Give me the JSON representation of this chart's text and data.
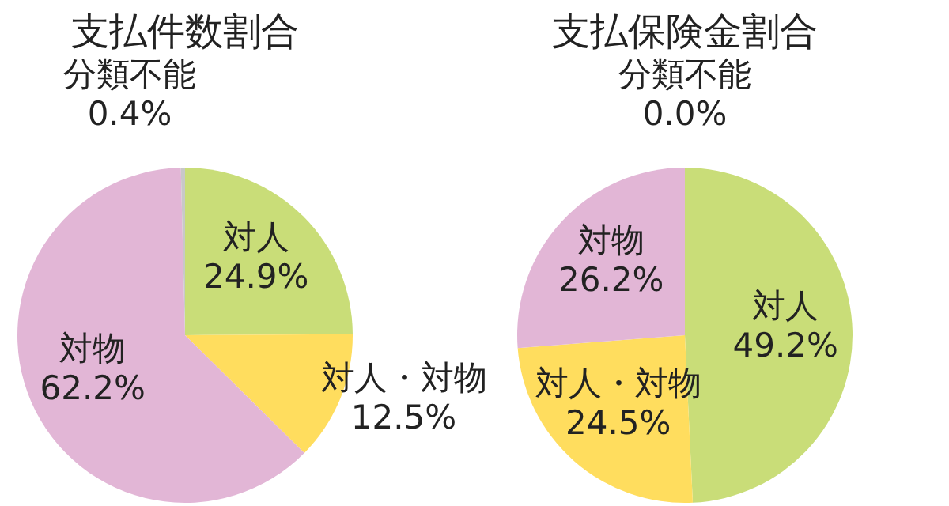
{
  "chart_data": [
    {
      "type": "pie",
      "title": "支払件数割合",
      "categories": [
        "対人",
        "対人・対物",
        "対物",
        "分類不能"
      ],
      "values": [
        24.9,
        12.5,
        62.2,
        0.4
      ],
      "value_labels": [
        "24.9%",
        "12.5%",
        "62.2%",
        "0.4%"
      ],
      "colors": [
        "#c9dd78",
        "#ffdd5e",
        "#e2b6d6",
        "#c8c8c8"
      ]
    },
    {
      "type": "pie",
      "title": "支払保険金割合",
      "categories": [
        "対人",
        "対人・対物",
        "対物",
        "分類不能"
      ],
      "values": [
        49.2,
        24.5,
        26.2,
        0.0
      ],
      "value_labels": [
        "49.2%",
        "24.5%",
        "26.2%",
        "0.0%"
      ],
      "colors": [
        "#c9dd78",
        "#ffdd5e",
        "#e2b6d6",
        "#c8c8c8"
      ]
    }
  ]
}
